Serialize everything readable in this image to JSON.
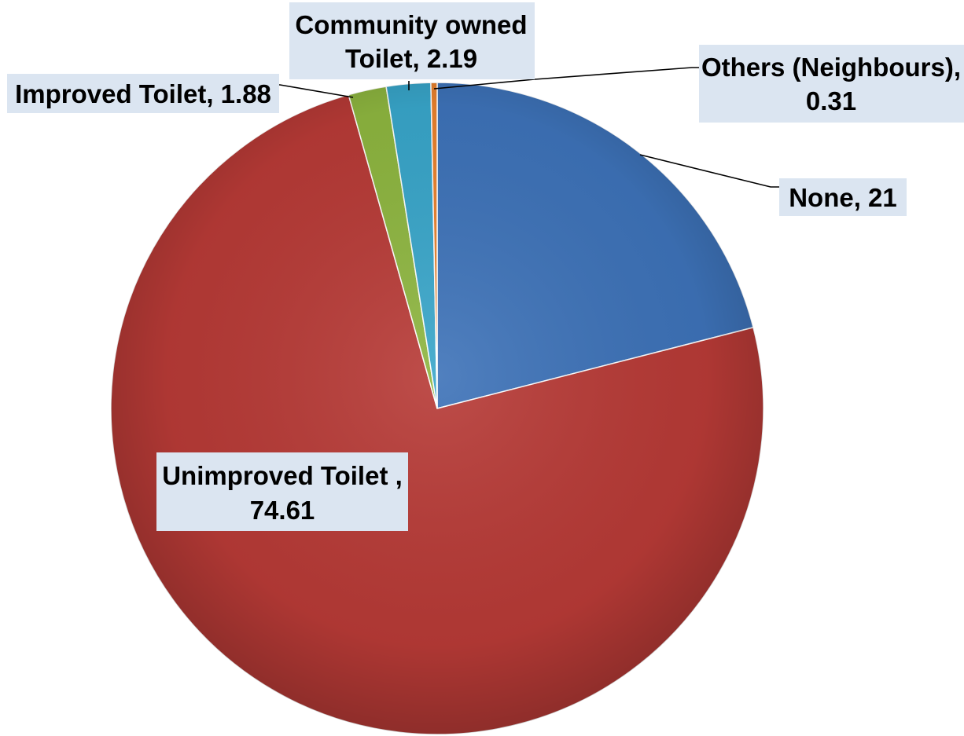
{
  "chart_data": {
    "type": "pie",
    "title": "",
    "slices": [
      {
        "category": "None",
        "value": 21,
        "label": "None, 21",
        "color": "#3d72b8"
      },
      {
        "category": "Unimproved Toilet ",
        "value": 74.61,
        "label_lines": [
          "Unimproved Toilet ,",
          "74.61"
        ],
        "color": "#b73a36"
      },
      {
        "category": "Improved Toilet",
        "value": 1.88,
        "label": "Improved Toilet, 1.88",
        "color": "#8db53f"
      },
      {
        "category": "Community owned Toilet",
        "value": 2.19,
        "label_lines": [
          "Community owned",
          "Toilet, 2.19"
        ],
        "color": "#38a5c9"
      },
      {
        "category": "Others (Neighbours)",
        "value": 0.31,
        "label_lines": [
          "Others (Neighbours),",
          "0.31"
        ],
        "color": "#e8812d"
      }
    ],
    "start_angle": "12 o'clock",
    "direction": "clockwise",
    "legend": "none",
    "data_labels": "category and value"
  }
}
